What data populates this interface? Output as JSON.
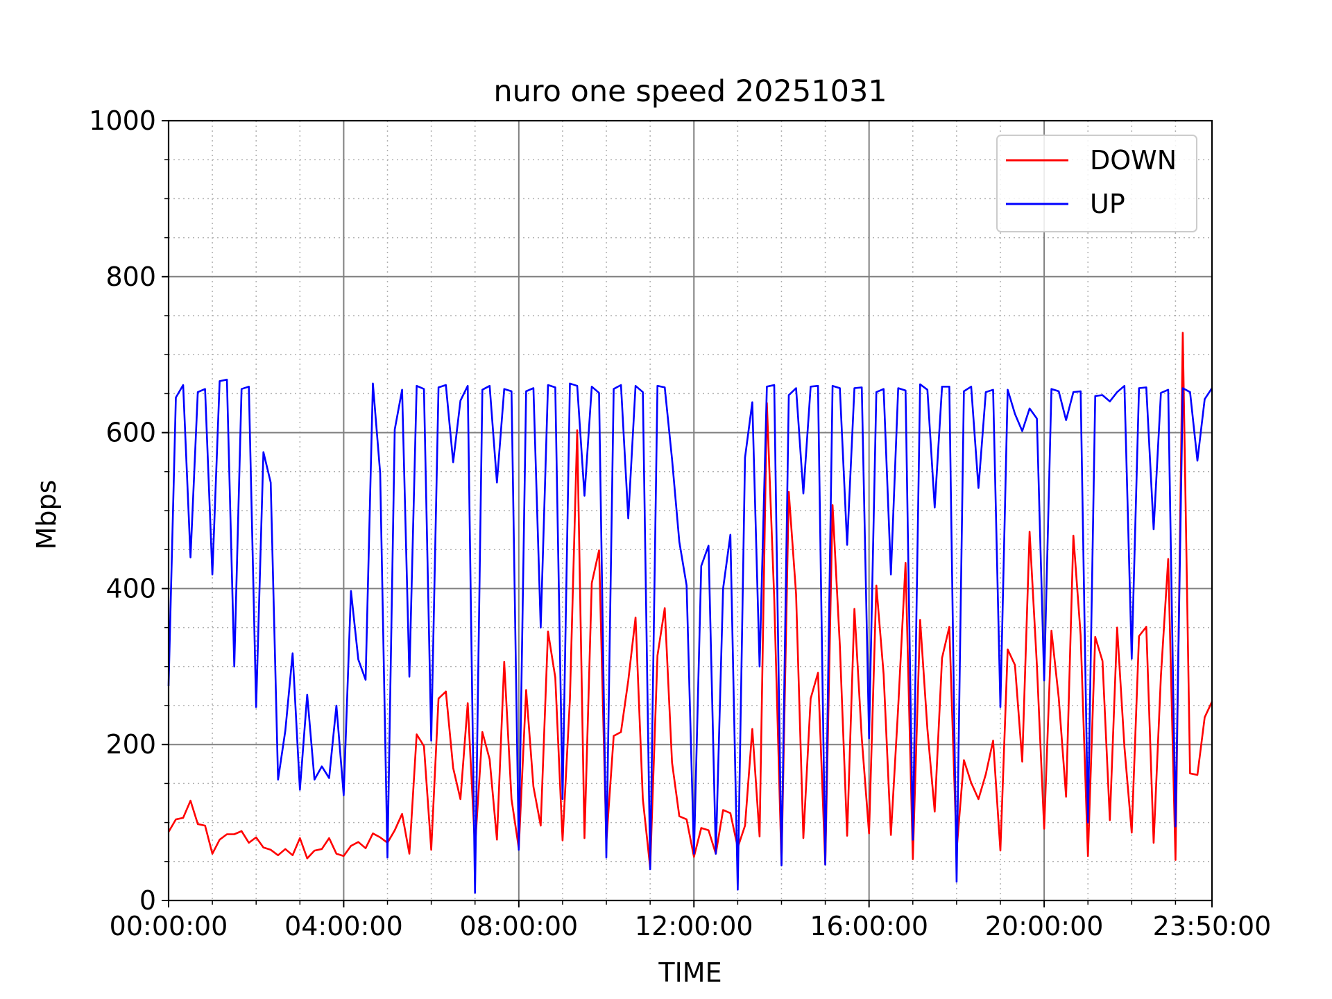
{
  "chart_data": {
    "type": "line",
    "title": "nuro one speed 20251031",
    "xlabel": "TIME",
    "ylabel": "Mbps",
    "ylim": [
      0,
      1000
    ],
    "xlim": [
      "00:00:00",
      "23:50:00"
    ],
    "interval_minutes": 10,
    "x_ticks": [
      "00:00:00",
      "04:00:00",
      "08:00:00",
      "12:00:00",
      "16:00:00",
      "20:00:00",
      "23:50:00"
    ],
    "y_ticks": [
      "0",
      "200",
      "400",
      "600",
      "800",
      "1000"
    ],
    "grid": {
      "major": true,
      "minor": "dotted"
    },
    "legend": "top-right",
    "series": [
      {
        "name": "DOWN",
        "color": "#ff0000",
        "values": [
          88,
          104,
          106,
          128,
          98,
          96,
          60,
          78,
          85,
          85,
          89,
          74,
          81,
          68,
          65,
          58,
          66,
          58,
          80,
          54,
          64,
          66,
          80,
          60,
          57,
          70,
          75,
          67,
          86,
          81,
          74,
          90,
          111,
          60,
          213,
          198,
          65,
          259,
          268,
          170,
          130,
          253,
          68,
          216,
          181,
          78,
          306,
          130,
          67,
          270,
          146,
          96,
          345,
          286,
          77,
          258,
          603,
          80,
          407,
          449,
          75,
          211,
          216,
          282,
          363,
          130,
          42,
          314,
          375,
          177,
          108,
          104,
          56,
          93,
          90,
          60,
          116,
          112,
          68,
          96,
          220,
          82,
          638,
          387,
          47,
          524,
          393,
          80,
          259,
          292,
          46,
          507,
          327,
          83,
          374,
          208,
          86,
          404,
          290,
          84,
          248,
          433,
          53,
          360,
          220,
          114,
          311,
          351,
          64,
          180,
          151,
          130,
          162,
          205,
          64,
          322,
          302,
          178,
          473,
          302,
          92,
          346,
          260,
          133,
          468,
          340,
          57,
          338,
          307,
          103,
          350,
          197,
          87,
          339,
          351,
          74,
          288,
          438,
          52,
          728,
          163,
          161,
          235,
          255
        ]
      },
      {
        "name": "UP",
        "color": "#0000ff",
        "values": [
          275,
          645,
          661,
          440,
          652,
          656,
          418,
          666,
          668,
          300,
          656,
          659,
          248,
          575,
          536,
          155,
          218,
          317,
          142,
          264,
          155,
          172,
          157,
          250,
          135,
          397,
          309,
          283,
          663,
          548,
          55,
          604,
          655,
          287,
          660,
          656,
          205,
          658,
          661,
          562,
          641,
          660,
          10,
          655,
          660,
          536,
          656,
          653,
          65,
          653,
          657,
          350,
          661,
          658,
          130,
          663,
          660,
          519,
          659,
          651,
          55,
          656,
          661,
          490,
          660,
          652,
          40,
          660,
          658,
          566,
          460,
          404,
          60,
          429,
          455,
          60,
          400,
          469,
          14,
          568,
          639,
          300,
          659,
          661,
          45,
          648,
          657,
          522,
          659,
          660,
          46,
          660,
          657,
          456,
          657,
          658,
          208,
          652,
          656,
          418,
          657,
          654,
          78,
          662,
          655,
          504,
          659,
          659,
          24,
          653,
          659,
          529,
          652,
          655,
          248,
          655,
          624,
          602,
          631,
          618,
          282,
          656,
          653,
          616,
          652,
          653,
          100,
          647,
          648,
          640,
          652,
          660,
          310,
          657,
          658,
          476,
          651,
          655,
          95,
          657,
          652,
          564,
          643,
          657
        ]
      }
    ]
  }
}
